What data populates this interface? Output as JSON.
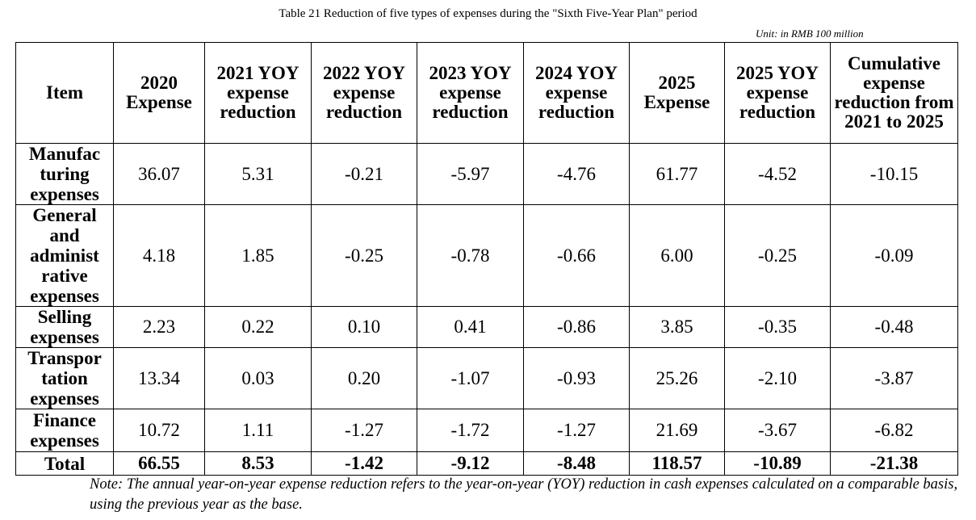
{
  "caption": "Table 21 Reduction of five types of expenses during the \"Sixth Five-Year Plan\" period",
  "unit": "Unit: in RMB 100 million",
  "headers": [
    "Item",
    "2020 Expense",
    "2021 YOY expense reduction",
    "2022 YOY expense reduction",
    "2023 YOY expense reduction",
    "2024 YOY expense reduction",
    "2025 Expense",
    "2025 YOY expense reduction",
    "Cumulative expense reduction from 2021 to 2025"
  ],
  "rows": [
    {
      "item": "Manufac turing expenses",
      "values": [
        "36.07",
        "5.31",
        "-0.21",
        "-5.97",
        "-4.76",
        "61.77",
        "-4.52",
        "-10.15"
      ]
    },
    {
      "item": "General and administ rative expenses",
      "values": [
        "4.18",
        "1.85",
        "-0.25",
        "-0.78",
        "-0.66",
        "6.00",
        "-0.25",
        "-0.09"
      ]
    },
    {
      "item": "Selling expenses",
      "values": [
        "2.23",
        "0.22",
        "0.10",
        "0.41",
        "-0.86",
        "3.85",
        "-0.35",
        "-0.48"
      ]
    },
    {
      "item": "Transpor tation expenses",
      "values": [
        "13.34",
        "0.03",
        "0.20",
        "-1.07",
        "-0.93",
        "25.26",
        "-2.10",
        "-3.87"
      ]
    },
    {
      "item": "Finance expenses",
      "values": [
        "10.72",
        "1.11",
        "-1.27",
        "-1.72",
        "-1.27",
        "21.69",
        "-3.67",
        "-6.82"
      ]
    },
    {
      "item": "Total",
      "values": [
        "66.55",
        "8.53",
        "-1.42",
        "-9.12",
        "-8.48",
        "118.57",
        "-10.89",
        "-21.38"
      ]
    }
  ],
  "note": "Note: The annual year-on-year expense reduction refers to the year-on-year (YOY) reduction in cash expenses calculated on a comparable basis, using the previous year as the base."
}
